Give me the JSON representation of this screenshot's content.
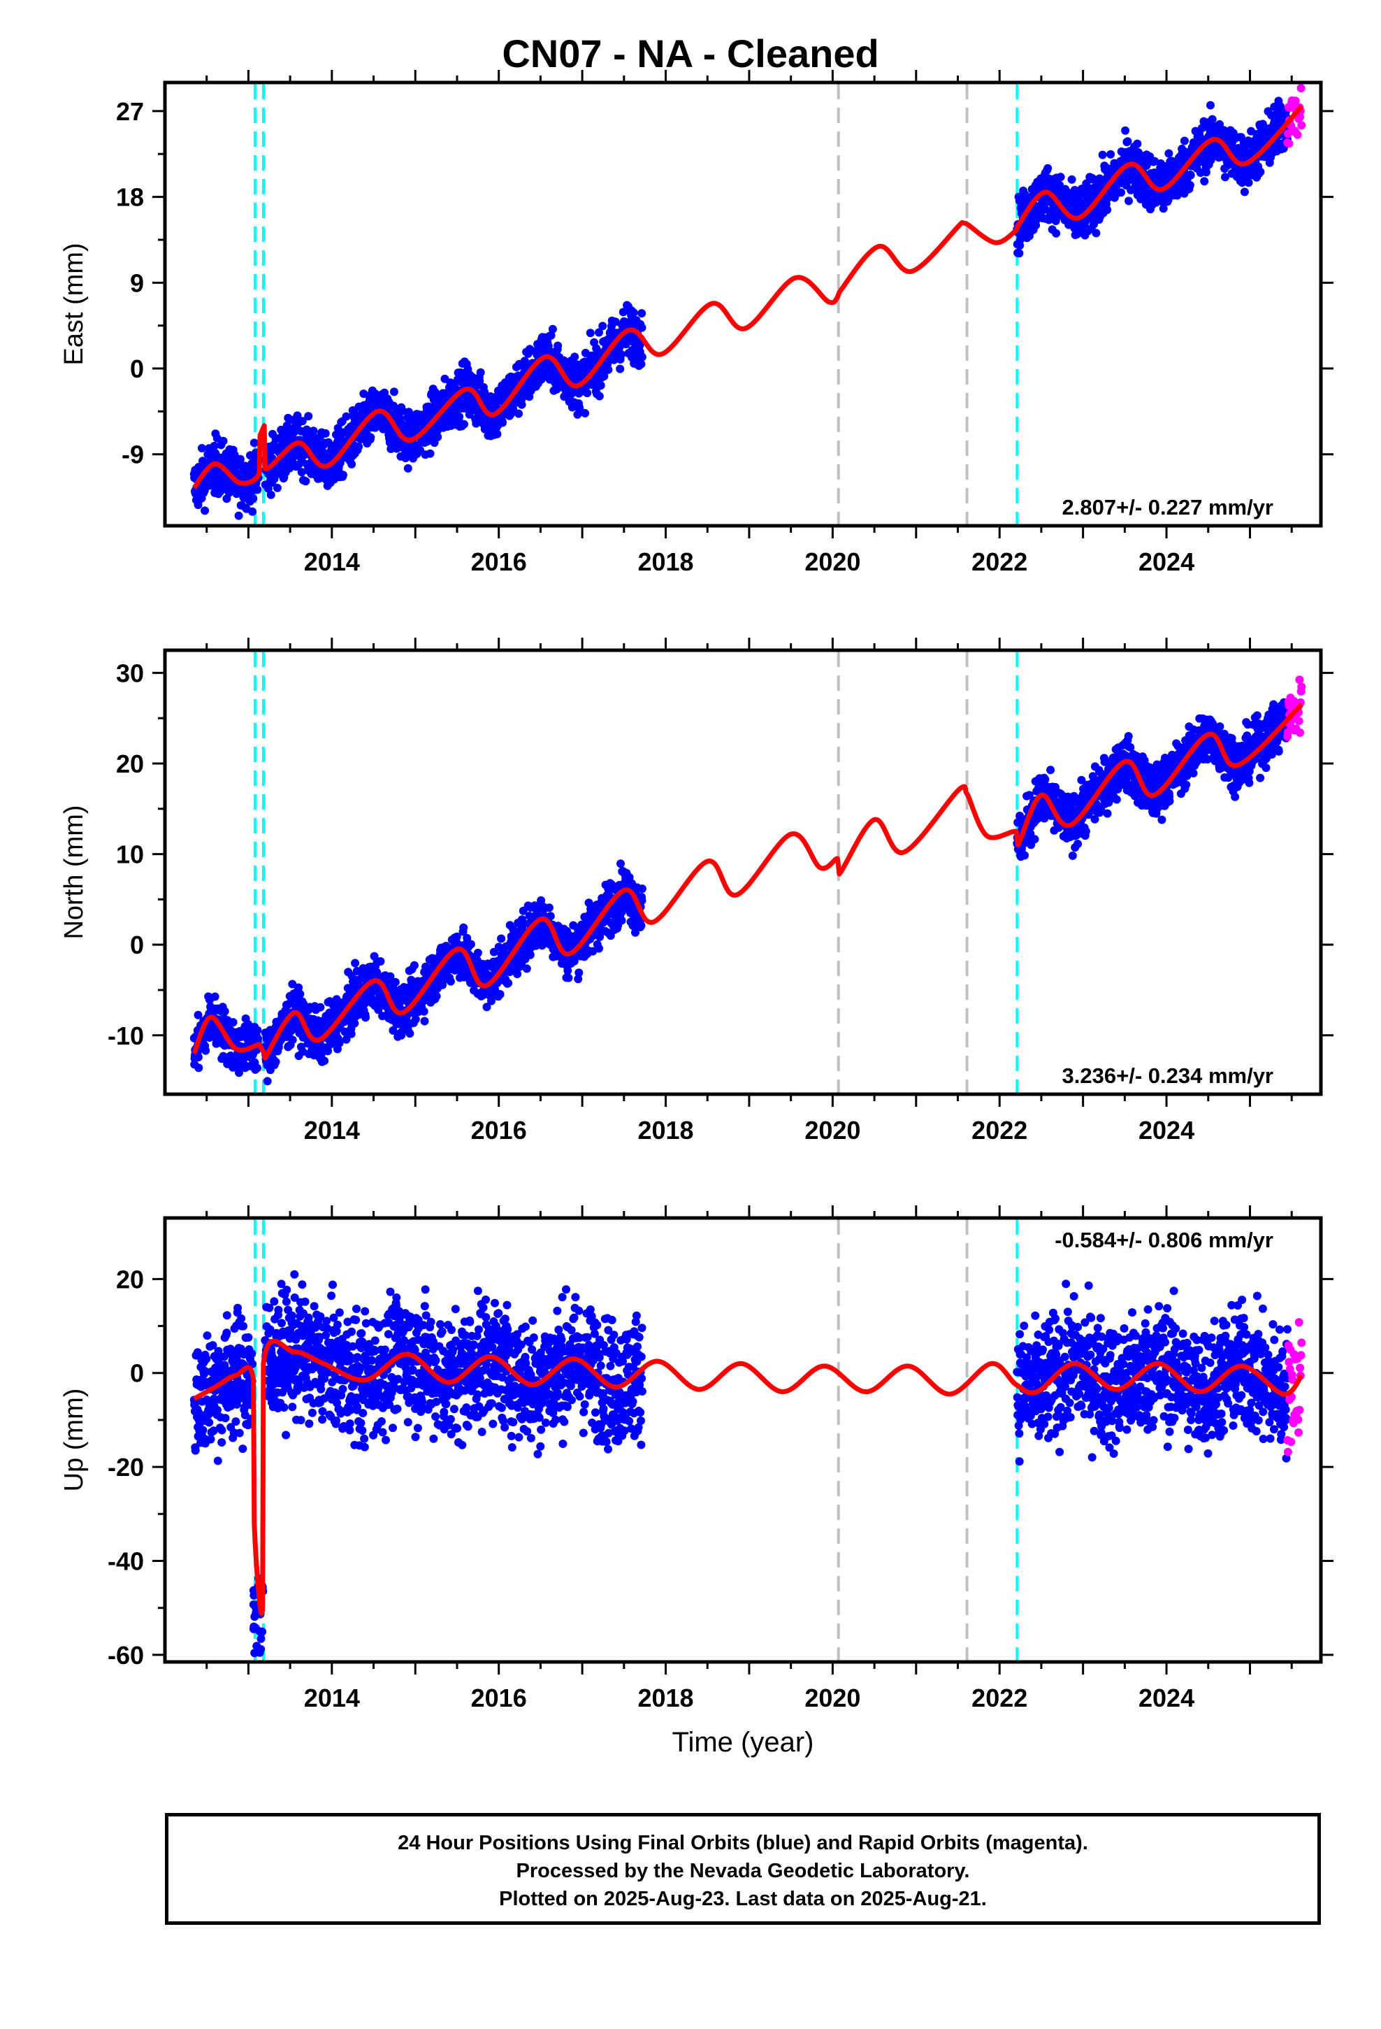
{
  "title": "CN07  - NA - Cleaned",
  "colors": {
    "final_orbits": "#0000ff",
    "rapid_orbits": "#ff00ff",
    "model": "#ff0000",
    "equipment_change": "#00ffff",
    "other_event": "#c0c0c0"
  },
  "chart_data": [
    {
      "type": "scatter",
      "panel": "East",
      "ylabel": "East (mm)",
      "xlim": [
        2012.0,
        2025.85
      ],
      "ylim": [
        -16.5,
        30.0
      ],
      "yticks": [
        -9,
        0,
        9,
        18,
        27
      ],
      "xticks": [
        2014,
        2016,
        2018,
        2020,
        2022,
        2024
      ],
      "rate_label": "2.807+/- 0.227 mm/yr",
      "rate_label_position": "bottom-right",
      "vertical_lines": [
        {
          "x": 2013.08,
          "kind": "equipment"
        },
        {
          "x": 2013.18,
          "kind": "equipment"
        },
        {
          "x": 2020.07,
          "kind": "other"
        },
        {
          "x": 2021.61,
          "kind": "other"
        },
        {
          "x": 2022.21,
          "kind": "equipment"
        }
      ],
      "series": [
        {
          "name": "Final Orbits",
          "color": "#0000ff",
          "segments": [
            [
              2012.35,
              2013.12
            ],
            [
              2013.2,
              2017.72
            ],
            [
              2022.21,
              2025.45
            ]
          ]
        },
        {
          "name": "Rapid Orbits",
          "color": "#ff00ff",
          "segments": [
            [
              2025.45,
              2025.62
            ]
          ]
        },
        {
          "name": "Model",
          "color": "#ff0000",
          "x": [
            2012.35,
            2012.6,
            2012.9,
            2013.13,
            2013.14,
            2013.19,
            2013.2,
            2013.6,
            2013.95,
            2014.55,
            2014.95,
            2015.6,
            2015.95,
            2016.55,
            2016.95,
            2017.55,
            2017.95,
            2018.55,
            2018.95,
            2019.55,
            2019.95,
            2020.06,
            2020.08,
            2020.55,
            2020.95,
            2021.55,
            2021.6,
            2021.62,
            2021.95,
            2022.2,
            2022.22,
            2022.55,
            2022.95,
            2023.55,
            2023.95,
            2024.55,
            2024.95,
            2025.62
          ],
          "y": [
            -12.5,
            -10.0,
            -12.0,
            -11.0,
            -7.0,
            -6.0,
            -10.5,
            -7.8,
            -10.2,
            -4.5,
            -7.5,
            -2.2,
            -4.8,
            1.2,
            -1.8,
            4.0,
            1.5,
            6.8,
            4.2,
            9.5,
            7.0,
            7.5,
            8.0,
            12.8,
            10.2,
            15.3,
            15.2,
            15.1,
            13.2,
            14.5,
            15.0,
            18.5,
            15.8,
            21.4,
            18.8,
            24.0,
            21.5,
            27.5
          ]
        }
      ]
    },
    {
      "type": "scatter",
      "panel": "North",
      "ylabel": "North (mm)",
      "xlim": [
        2012.0,
        2025.85
      ],
      "ylim": [
        -16.5,
        32.5
      ],
      "yticks": [
        -10,
        0,
        10,
        20,
        30
      ],
      "xticks": [
        2014,
        2016,
        2018,
        2020,
        2022,
        2024
      ],
      "rate_label": "3.236+/- 0.234 mm/yr",
      "rate_label_position": "bottom-right",
      "vertical_lines": [
        {
          "x": 2013.08,
          "kind": "equipment"
        },
        {
          "x": 2013.18,
          "kind": "equipment"
        },
        {
          "x": 2020.07,
          "kind": "other"
        },
        {
          "x": 2021.61,
          "kind": "other"
        },
        {
          "x": 2022.21,
          "kind": "equipment"
        }
      ],
      "series": [
        {
          "name": "Final Orbits",
          "color": "#0000ff",
          "segments": [
            [
              2012.35,
              2013.12
            ],
            [
              2013.2,
              2017.72
            ],
            [
              2022.21,
              2025.45
            ]
          ]
        },
        {
          "name": "Rapid Orbits",
          "color": "#ff00ff",
          "segments": [
            [
              2025.45,
              2025.62
            ]
          ]
        },
        {
          "name": "Model",
          "color": "#ff0000",
          "x": [
            2012.35,
            2012.55,
            2012.85,
            2013.13,
            2013.14,
            2013.19,
            2013.2,
            2013.55,
            2013.85,
            2014.5,
            2014.85,
            2015.5,
            2015.85,
            2016.5,
            2016.85,
            2017.5,
            2017.85,
            2018.5,
            2018.85,
            2019.5,
            2019.85,
            2020.06,
            2020.08,
            2020.5,
            2020.85,
            2021.5,
            2021.6,
            2021.62,
            2021.85,
            2022.2,
            2022.22,
            2022.5,
            2022.85,
            2023.5,
            2023.85,
            2024.5,
            2024.85,
            2025.62
          ],
          "y": [
            -12.0,
            -8.0,
            -11.5,
            -11.0,
            -11.2,
            -12.0,
            -12.5,
            -7.5,
            -10.5,
            -4.0,
            -7.5,
            -0.5,
            -4.5,
            2.8,
            -1.0,
            6.0,
            2.5,
            9.2,
            5.5,
            12.2,
            8.5,
            9.5,
            7.8,
            13.8,
            10.2,
            17.0,
            16.8,
            16.5,
            12.0,
            12.5,
            11.0,
            16.5,
            13.2,
            20.2,
            16.5,
            23.2,
            19.8,
            26.5
          ]
        }
      ]
    },
    {
      "type": "scatter",
      "panel": "Up",
      "ylabel": "Up (mm)",
      "xlim": [
        2012.0,
        2025.85
      ],
      "ylim": [
        -61.5,
        33.0
      ],
      "yticks": [
        -60,
        -40,
        -20,
        0,
        20
      ],
      "xticks": [
        2014,
        2016,
        2018,
        2020,
        2022,
        2024
      ],
      "xlabel": "Time (year)",
      "rate_label": "-0.584+/- 0.806 mm/yr",
      "rate_label_position": "top-right",
      "vertical_lines": [
        {
          "x": 2013.08,
          "kind": "equipment"
        },
        {
          "x": 2013.18,
          "kind": "equipment"
        },
        {
          "x": 2020.07,
          "kind": "other"
        },
        {
          "x": 2021.61,
          "kind": "other"
        },
        {
          "x": 2022.21,
          "kind": "equipment"
        }
      ],
      "series": [
        {
          "name": "Final Orbits",
          "color": "#0000ff",
          "segments": [
            [
              2012.35,
              2013.05
            ],
            [
              2013.2,
              2017.72
            ],
            [
              2022.21,
              2025.45
            ]
          ],
          "offset_cluster": {
            "x": [
              2013.06,
              2013.18
            ],
            "y": [
              -60,
              -43
            ]
          }
        },
        {
          "name": "Rapid Orbits",
          "color": "#ff00ff",
          "segments": [
            [
              2025.45,
              2025.62
            ]
          ]
        },
        {
          "name": "Model",
          "color": "#ff0000",
          "x": [
            2012.35,
            2012.6,
            2012.85,
            2013.06,
            2013.07,
            2013.17,
            2013.18,
            2013.55,
            2013.9,
            2014.4,
            2014.9,
            2015.4,
            2015.9,
            2016.4,
            2016.9,
            2017.4,
            2017.9,
            2018.4,
            2018.9,
            2019.4,
            2019.9,
            2020.4,
            2020.9,
            2021.4,
            2021.9,
            2022.2,
            2022.45,
            2022.9,
            2023.4,
            2023.9,
            2024.4,
            2024.9,
            2025.4,
            2025.62
          ],
          "y": [
            -5.5,
            -3.0,
            -0.5,
            -1.5,
            -32,
            -50,
            2.0,
            4.5,
            2.0,
            -1.5,
            4.0,
            -2.0,
            3.5,
            -2.5,
            3.0,
            -3.0,
            2.5,
            -3.5,
            2.0,
            -4.0,
            1.5,
            -4.0,
            1.5,
            -4.5,
            2.0,
            -2.5,
            -4.0,
            2.0,
            -3.5,
            2.0,
            -4.0,
            1.5,
            -4.5,
            -0.5
          ]
        }
      ]
    }
  ],
  "footer": {
    "line1": "24 Hour Positions Using Final Orbits (blue) and Rapid Orbits (magenta).",
    "line2": "Processed by the Nevada Geodetic Laboratory.",
    "line3": "Plotted on 2025-Aug-23. Last data on 2025-Aug-21."
  }
}
